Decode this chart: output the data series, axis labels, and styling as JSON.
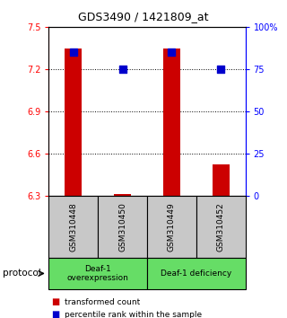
{
  "title": "GDS3490 / 1421809_at",
  "samples": [
    "GSM310448",
    "GSM310450",
    "GSM310449",
    "GSM310452"
  ],
  "red_values": [
    7.35,
    6.31,
    7.35,
    6.52
  ],
  "blue_values": [
    85,
    75,
    85,
    75
  ],
  "ylim_left": [
    6.3,
    7.5
  ],
  "ylim_right": [
    0,
    100
  ],
  "yticks_left": [
    6.3,
    6.6,
    6.9,
    7.2,
    7.5
  ],
  "yticks_right": [
    0,
    25,
    50,
    75,
    100
  ],
  "ytick_labels_left": [
    "6.3",
    "6.6",
    "6.9",
    "7.2",
    "7.5"
  ],
  "ytick_labels_right": [
    "0",
    "25",
    "50",
    "75",
    "100%"
  ],
  "groups": [
    {
      "label": "Deaf-1\noverexpression",
      "samples_idx": [
        0,
        1
      ],
      "color": "#66DD66"
    },
    {
      "label": "Deaf-1 deficiency",
      "samples_idx": [
        2,
        3
      ],
      "color": "#66DD66"
    }
  ],
  "bar_color": "#CC0000",
  "dot_color": "#0000CC",
  "bar_width": 0.35,
  "dot_size": 30,
  "legend_red_label": "transformed count",
  "legend_blue_label": "percentile rank within the sample",
  "protocol_label": "protocol",
  "sample_box_color": "#C8C8C8",
  "background_color": "#FFFFFF"
}
